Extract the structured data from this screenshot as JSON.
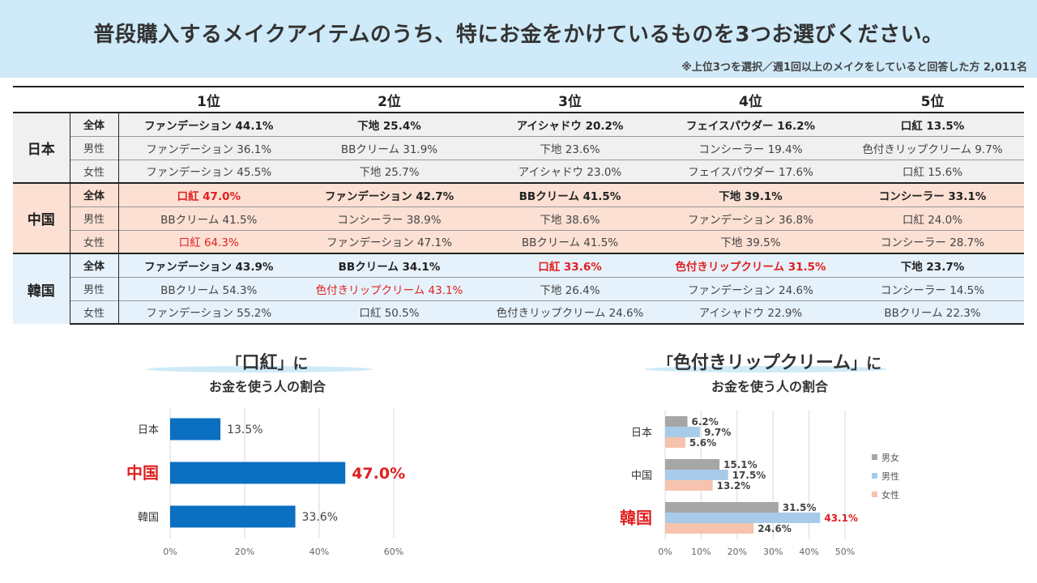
{
  "title": "普段購入するメイクアイテムのうち、特にお金をかけているものを3つお選びください。",
  "note": "※上位3つを選択／週1回以上のメイクをしていると回答した方 2,011名",
  "table": {
    "headers": [
      "1位",
      "2位",
      "3位",
      "4位",
      "5位"
    ],
    "countries": [
      {
        "name": "日本",
        "key": "jp",
        "rows": [
          {
            "group": "全体",
            "cells": [
              "ファンデーション 44.1%",
              "下地 25.4%",
              "アイシャドウ 20.2%",
              "フェイスパウダー 16.2%",
              "口紅 13.5%"
            ],
            "red": []
          },
          {
            "group": "男性",
            "cells": [
              "ファンデーション 36.1%",
              "BBクリーム 31.9%",
              "下地 23.6%",
              "コンシーラー 19.4%",
              "色付きリップクリーム 9.7%"
            ],
            "red": []
          },
          {
            "group": "女性",
            "cells": [
              "ファンデーション 45.5%",
              "下地 25.7%",
              "アイシャドウ 23.0%",
              "フェイスパウダー 17.6%",
              "口紅 15.6%"
            ],
            "red": []
          }
        ]
      },
      {
        "name": "中国",
        "key": "cn",
        "rows": [
          {
            "group": "全体",
            "cells": [
              "口紅 47.0%",
              "ファンデーション 42.7%",
              "BBクリーム 41.5%",
              "下地 39.1%",
              "コンシーラー 33.1%"
            ],
            "red": [
              0
            ]
          },
          {
            "group": "男性",
            "cells": [
              "BBクリーム 41.5%",
              "コンシーラー 38.9%",
              "下地 38.6%",
              "ファンデーション 36.8%",
              "口紅 24.0%"
            ],
            "red": []
          },
          {
            "group": "女性",
            "cells": [
              "口紅 64.3%",
              "ファンデーション 47.1%",
              "BBクリーム 41.5%",
              "下地 39.5%",
              "コンシーラー 28.7%"
            ],
            "red": [
              0
            ]
          }
        ]
      },
      {
        "name": "韓国",
        "key": "kr",
        "rows": [
          {
            "group": "全体",
            "cells": [
              "ファンデーション 43.9%",
              "BBクリーム 34.1%",
              "口紅 33.6%",
              "色付きリップクリーム 31.5%",
              "下地 23.7%"
            ],
            "red": [
              2,
              3
            ]
          },
          {
            "group": "男性",
            "cells": [
              "BBクリーム 54.3%",
              "色付きリップクリーム 43.1%",
              "下地 26.4%",
              "ファンデーション 24.6%",
              "コンシーラー 14.5%"
            ],
            "red": [
              1
            ]
          },
          {
            "group": "女性",
            "cells": [
              "ファンデーション 55.2%",
              "口紅 50.5%",
              "色付きリップクリーム 24.6%",
              "アイシャドウ 22.9%",
              "BBクリーム 22.3%"
            ],
            "red": []
          }
        ]
      }
    ]
  },
  "colors": {
    "bar_blue": "#0b6fc2",
    "highlight_red": "#e02020",
    "series_all": "#a6a6a6",
    "series_male": "#a9cbea",
    "series_female": "#f5c3ae"
  },
  "chart_data": [
    {
      "type": "bar",
      "orientation": "horizontal",
      "title_line1_prefix": "「",
      "title_line1_big": "口紅",
      "title_line1_suffix": "」に",
      "title_line2": "お金を使う人の割合",
      "categories": [
        "日本",
        "中国",
        "韓国"
      ],
      "values": [
        13.5,
        47.0,
        33.6
      ],
      "value_labels": [
        "13.5%",
        "47.0%",
        "33.6%"
      ],
      "highlight": [
        1
      ],
      "xlim": [
        0,
        60
      ],
      "xticks": [
        "0%",
        "20%",
        "40%",
        "60%"
      ],
      "xtick_values": [
        0,
        20,
        40,
        60
      ],
      "grid": true
    },
    {
      "type": "bar",
      "orientation": "horizontal",
      "title_line1_prefix": "「",
      "title_line1_big": "色付きリップクリーム",
      "title_line1_suffix": "」に",
      "title_line2": "お金を使う人の割合",
      "categories": [
        "日本",
        "中国",
        "韓国"
      ],
      "series": [
        {
          "name": "男女",
          "values": [
            6.2,
            15.1,
            31.5
          ],
          "labels": [
            "6.2%",
            "15.1%",
            "31.5%"
          ]
        },
        {
          "name": "男性",
          "values": [
            9.7,
            17.5,
            43.1
          ],
          "labels": [
            "9.7%",
            "17.5%",
            "43.1%"
          ]
        },
        {
          "name": "女性",
          "values": [
            5.6,
            13.2,
            24.6
          ],
          "labels": [
            "5.6%",
            "13.2%",
            "24.6%"
          ]
        }
      ],
      "highlight_category": 2,
      "highlight_point": [
        2,
        1
      ],
      "xlim": [
        0,
        50
      ],
      "xticks": [
        "0%",
        "10%",
        "20%",
        "30%",
        "40%",
        "50%"
      ],
      "xtick_values": [
        0,
        10,
        20,
        30,
        40,
        50
      ],
      "legend": "right",
      "grid": true
    }
  ]
}
